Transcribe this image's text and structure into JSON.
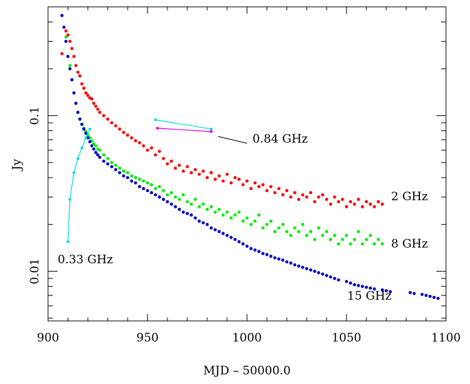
{
  "chart_data": {
    "type": "scatter",
    "xlabel": "MJD – 50000.0",
    "ylabel": "Jy",
    "xlim": [
      900,
      1100
    ],
    "ylim": [
      0.0048,
      0.5
    ],
    "y_scale": "log",
    "x_ticks": [
      900,
      950,
      1000,
      1050,
      1100
    ],
    "x_tick_labels": [
      "900",
      "950",
      "1000",
      "1050",
      "1100"
    ],
    "y_ticks": [
      0.1,
      0.01
    ],
    "y_tick_labels": [
      "0.1",
      "0.01"
    ],
    "grid": false,
    "series": [
      {
        "name": "2 GHz",
        "color": "#ff0000",
        "mode": "markers",
        "x": [
          907,
          909,
          910,
          911,
          912,
          913,
          914,
          915,
          916,
          917,
          918,
          919,
          920,
          921,
          922,
          923,
          924,
          925,
          926,
          928,
          930,
          932,
          934,
          936,
          938,
          940,
          942,
          944,
          946,
          948,
          950,
          952,
          954,
          956,
          958,
          960,
          962,
          964,
          966,
          968,
          970,
          972,
          974,
          976,
          978,
          980,
          982,
          984,
          986,
          988,
          990,
          992,
          994,
          996,
          998,
          1000,
          1002,
          1004,
          1006,
          1008,
          1010,
          1012,
          1014,
          1016,
          1018,
          1020,
          1022,
          1024,
          1026,
          1028,
          1030,
          1032,
          1034,
          1036,
          1038,
          1040,
          1042,
          1044,
          1046,
          1048,
          1050,
          1052,
          1054,
          1056,
          1058,
          1060,
          1062,
          1064,
          1066,
          1068
        ],
        "y": [
          0.25,
          0.35,
          0.33,
          0.3,
          0.27,
          0.24,
          0.21,
          0.19,
          0.18,
          0.16,
          0.15,
          0.14,
          0.135,
          0.13,
          0.128,
          0.12,
          0.115,
          0.11,
          0.105,
          0.1,
          0.095,
          0.09,
          0.086,
          0.082,
          0.078,
          0.075,
          0.072,
          0.069,
          0.067,
          0.064,
          0.06,
          0.062,
          0.056,
          0.059,
          0.053,
          0.049,
          0.051,
          0.046,
          0.048,
          0.044,
          0.047,
          0.043,
          0.045,
          0.042,
          0.044,
          0.04,
          0.043,
          0.039,
          0.041,
          0.038,
          0.042,
          0.037,
          0.04,
          0.039,
          0.036,
          0.038,
          0.034,
          0.037,
          0.035,
          0.036,
          0.033,
          0.035,
          0.032,
          0.034,
          0.031,
          0.033,
          0.03,
          0.032,
          0.029,
          0.031,
          0.03,
          0.032,
          0.028,
          0.03,
          0.031,
          0.029,
          0.027,
          0.03,
          0.028,
          0.029,
          0.026,
          0.028,
          0.027,
          0.029,
          0.026,
          0.028,
          0.027,
          0.026,
          0.028,
          0.027
        ]
      },
      {
        "name": "8 GHz",
        "color": "#00ee00",
        "mode": "markers",
        "x": [
          909,
          911,
          912,
          913,
          914,
          915,
          916,
          917,
          918,
          919,
          920,
          921,
          922,
          923,
          924,
          925,
          926,
          928,
          930,
          932,
          934,
          936,
          938,
          940,
          942,
          944,
          946,
          948,
          950,
          952,
          954,
          956,
          958,
          960,
          962,
          964,
          966,
          968,
          970,
          972,
          974,
          976,
          978,
          980,
          982,
          984,
          986,
          988,
          990,
          992,
          994,
          996,
          998,
          1000,
          1002,
          1004,
          1006,
          1008,
          1010,
          1012,
          1014,
          1016,
          1018,
          1020,
          1022,
          1024,
          1026,
          1028,
          1030,
          1032,
          1034,
          1036,
          1038,
          1040,
          1042,
          1044,
          1046,
          1048,
          1050,
          1052,
          1054,
          1056,
          1058,
          1060,
          1062,
          1064,
          1066,
          1068
        ],
        "y": [
          0.32,
          0.21,
          0.17,
          0.14,
          0.12,
          0.105,
          0.095,
          0.088,
          0.083,
          0.079,
          0.075,
          0.072,
          0.069,
          0.066,
          0.064,
          0.061,
          0.06,
          0.056,
          0.053,
          0.05,
          0.048,
          0.046,
          0.044,
          0.043,
          0.041,
          0.04,
          0.039,
          0.038,
          0.037,
          0.036,
          0.034,
          0.035,
          0.033,
          0.031,
          0.032,
          0.03,
          0.029,
          0.031,
          0.028,
          0.027,
          0.029,
          0.026,
          0.027,
          0.025,
          0.026,
          0.024,
          0.025,
          0.023,
          0.024,
          0.022,
          0.023,
          0.024,
          0.021,
          0.022,
          0.02,
          0.021,
          0.023,
          0.019,
          0.02,
          0.021,
          0.018,
          0.019,
          0.02,
          0.018,
          0.017,
          0.019,
          0.018,
          0.02,
          0.017,
          0.018,
          0.016,
          0.019,
          0.017,
          0.018,
          0.016,
          0.017,
          0.015,
          0.016,
          0.017,
          0.015,
          0.016,
          0.018,
          0.015,
          0.016,
          0.017,
          0.015,
          0.016,
          0.015
        ]
      },
      {
        "name": "15 GHz",
        "color": "#0000cc",
        "mode": "markers",
        "x": [
          907,
          908,
          909,
          910,
          911,
          912,
          913,
          914,
          915,
          916,
          917,
          918,
          919,
          920,
          921,
          922,
          923,
          924,
          925,
          926,
          928,
          930,
          932,
          934,
          936,
          938,
          940,
          942,
          944,
          946,
          948,
          950,
          952,
          954,
          956,
          958,
          960,
          962,
          964,
          966,
          968,
          970,
          972,
          974,
          976,
          978,
          980,
          982,
          984,
          986,
          988,
          990,
          992,
          994,
          996,
          998,
          1000,
          1002,
          1004,
          1006,
          1008,
          1010,
          1012,
          1014,
          1016,
          1018,
          1020,
          1022,
          1024,
          1026,
          1028,
          1030,
          1032,
          1034,
          1036,
          1038,
          1040,
          1042,
          1044,
          1046,
          1050,
          1052,
          1054,
          1056,
          1058,
          1060,
          1062,
          1064,
          1068,
          1070,
          1072,
          1082,
          1084,
          1088,
          1090,
          1092,
          1094,
          1096
        ],
        "y": [
          0.44,
          0.37,
          0.3,
          0.24,
          0.2,
          0.17,
          0.14,
          0.12,
          0.105,
          0.095,
          0.088,
          0.082,
          0.077,
          0.072,
          0.068,
          0.064,
          0.061,
          0.058,
          0.056,
          0.054,
          0.051,
          0.049,
          0.047,
          0.045,
          0.043,
          0.041,
          0.04,
          0.038,
          0.037,
          0.035,
          0.034,
          0.033,
          0.032,
          0.031,
          0.03,
          0.029,
          0.028,
          0.027,
          0.026,
          0.025,
          0.024,
          0.0235,
          0.023,
          0.022,
          0.021,
          0.0205,
          0.02,
          0.019,
          0.0185,
          0.018,
          0.0175,
          0.017,
          0.0165,
          0.016,
          0.0155,
          0.015,
          0.0145,
          0.014,
          0.0137,
          0.0134,
          0.013,
          0.0128,
          0.0125,
          0.0122,
          0.012,
          0.0118,
          0.0115,
          0.0113,
          0.011,
          0.0108,
          0.0106,
          0.0104,
          0.0102,
          0.01,
          0.0098,
          0.0096,
          0.0094,
          0.0092,
          0.009,
          0.0088,
          0.0086,
          0.0084,
          0.0082,
          0.0081,
          0.008,
          0.0079,
          0.0078,
          0.0077,
          0.0076,
          0.0075,
          0.0074,
          0.0073,
          0.0072,
          0.0071,
          0.007,
          0.0069,
          0.0068,
          0.0067
        ]
      },
      {
        "name": "0.33 GHz",
        "color": "#00dddd",
        "mode": "lines+markers",
        "x": [
          910,
          911,
          913,
          915,
          917,
          919,
          921
        ],
        "y": [
          0.0155,
          0.029,
          0.043,
          0.053,
          0.062,
          0.072,
          0.082
        ]
      },
      {
        "name": "0.84 GHz",
        "color": "#00dddd",
        "mode": "lines+markers",
        "x": [
          954,
          982
        ],
        "y": [
          0.094,
          0.082
        ]
      },
      {
        "name": "0.84 GHz",
        "color": "#dd00dd",
        "mode": "lines+markers",
        "x": [
          955,
          982
        ],
        "y": [
          0.083,
          0.079
        ]
      }
    ],
    "annotations": [
      {
        "text": "0.84 GHz"
      },
      {
        "text": "2 GHz"
      },
      {
        "text": "8 GHz"
      },
      {
        "text": "15 GHz"
      },
      {
        "text": "0.33 GHz"
      }
    ]
  }
}
